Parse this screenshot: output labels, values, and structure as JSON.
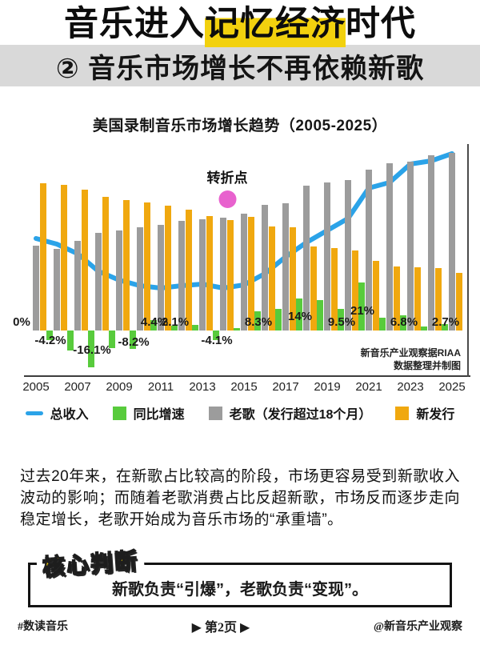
{
  "colors": {
    "highlight_yellow": "#F2D10E",
    "subtitle_band_gray": "#D9D9D9",
    "revenue_line_blue": "#2BA3E8",
    "growth_green": "#58CB3C",
    "old_songs_gray": "#9C9C9C",
    "new_release_yellow": "#F0A80F",
    "turning_point_pink": "#E862CE"
  },
  "header": {
    "title_prefix": "音乐进入",
    "title_highlight": "记忆经济",
    "title_suffix": "时代",
    "subtitle": "② 音乐市场增长不再依赖新歌"
  },
  "chart_data": {
    "type": "bar+line combo",
    "title": "美国录制音乐市场增长趋势（2005-2025）",
    "years": [
      2005,
      2006,
      2007,
      2008,
      2009,
      2010,
      2011,
      2012,
      2013,
      2014,
      2015,
      2016,
      2017,
      2018,
      2019,
      2020,
      2021,
      2022,
      2023,
      2024,
      2025
    ],
    "x_tick_labels": [
      "2005",
      "2007",
      "2009",
      "2011",
      "2013",
      "2015",
      "2017",
      "2019",
      "2021",
      "2023",
      "2025"
    ],
    "value_axis": "none shown in source; revenue series stored as estimated relative heights (px), growth series in %",
    "series": [
      {
        "name": "总收入",
        "type": "line",
        "color": "#2BA3E8",
        "values": [
          115,
          108,
          96,
          74,
          63,
          56,
          53,
          56,
          58,
          53,
          57,
          71,
          92,
          110,
          125,
          140,
          178,
          185,
          208,
          212,
          221
        ]
      },
      {
        "name": "同比增速",
        "type": "bar",
        "color": "#58CB3C",
        "unit": "%",
        "values": [
          0,
          -4.2,
          -8.7,
          -16.1,
          -7.7,
          -8.2,
          4.4,
          2.1,
          2.5,
          -4.1,
          1.0,
          8.3,
          9.4,
          14,
          13.5,
          9.5,
          21,
          5.5,
          6.8,
          1.7,
          2.7
        ]
      },
      {
        "name": "老歌（发行超过18个月）",
        "type": "bar",
        "color": "#9C9C9C",
        "values": [
          106,
          102,
          112,
          122,
          125,
          129,
          132,
          137,
          139,
          141,
          146,
          157,
          159,
          181,
          185,
          188,
          201,
          209,
          211,
          219,
          222
        ]
      },
      {
        "name": "新发行",
        "type": "bar",
        "color": "#F0A80F",
        "values": [
          184,
          182,
          176,
          167,
          163,
          160,
          156,
          151,
          143,
          138,
          142,
          130,
          129,
          105,
          103,
          100,
          87,
          80,
          79,
          78,
          72
        ]
      }
    ],
    "growth_labels": [
      {
        "year": 2005,
        "text": "0%",
        "dx": -18,
        "dy": 0
      },
      {
        "year": 2006,
        "text": "-4.2%",
        "dy": 0
      },
      {
        "year": 2008,
        "text": "-16.1%",
        "dy": 12
      },
      {
        "year": 2010,
        "text": "-8.2%",
        "dy": 2
      },
      {
        "year": 2011,
        "text": "4.4%",
        "dy": 0
      },
      {
        "year": 2012,
        "text": "2.1%",
        "dy": 0
      },
      {
        "year": 2014,
        "text": "-4.1%",
        "dy": 0
      },
      {
        "year": 2016,
        "text": "8.3%",
        "dy": 0
      },
      {
        "year": 2018,
        "text": "14%",
        "dy": 7
      },
      {
        "year": 2020,
        "text": "9.5%",
        "dy": 0
      },
      {
        "year": 2021,
        "text": "21%",
        "dy": 14
      },
      {
        "year": 2023,
        "text": "6.8%",
        "dy": 0
      },
      {
        "year": 2025,
        "text": "2.7%",
        "dy": 0
      }
    ],
    "annotation": {
      "text": "转折点",
      "dot_color": "#E862CE",
      "at_year": 2014
    },
    "source_note_lines": [
      "新音乐产业观察据RIAA",
      "数据整理并制图"
    ],
    "legend_position": "bottom",
    "grid": false
  },
  "body": {
    "paragraph": "过去20年来，在新歌占比较高的阶段，市场更容易受到新歌收入波动的影响；而随着老歌消费占比反超新歌，市场反而逐步走向稳定增长，老歌开始成为音乐市场的“承重墙”。"
  },
  "core": {
    "badge": "核心判断",
    "text": "新歌负责“引爆”，老歌负责“变现”。"
  },
  "footer": {
    "left": "#数读音乐",
    "center": "▶ 第2页 ▶",
    "right": "@新音乐产业观察"
  }
}
